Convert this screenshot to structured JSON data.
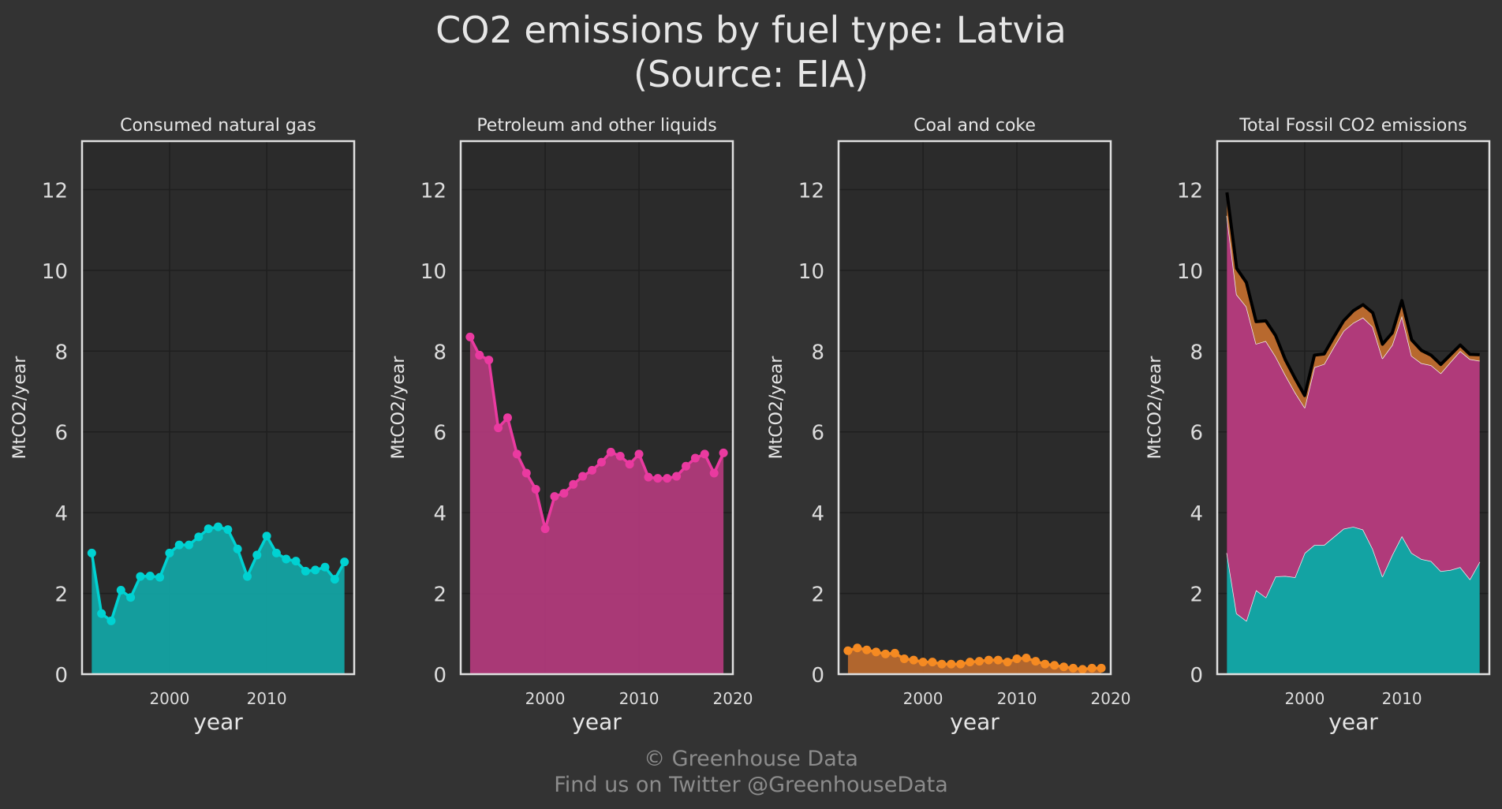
{
  "title_line1": "CO2 emissions by fuel type: Latvia",
  "title_line2": "(Source: EIA)",
  "footer_line1": "© Greenhouse Data",
  "footer_line2": "Find us on Twitter @GreenhouseData",
  "colors": {
    "background": "#333333",
    "panel": "#2b2b2b",
    "gas": "#00d2d2",
    "gas_fill": "#13a3a3",
    "petroleum": "#ea3aa0",
    "petroleum_fill": "#b03a7a",
    "coal": "#f58a22",
    "coal_fill": "#b8692e",
    "total_line": "#000000"
  },
  "chart_data": [
    {
      "type": "area",
      "title": "Consumed natural gas",
      "xlabel": "year",
      "ylabel": "MtCO2/year",
      "xlim": [
        1991,
        2019
      ],
      "ylim": [
        0,
        13.2
      ],
      "xticks": [
        2000,
        2010
      ],
      "yticks": [
        0,
        2,
        4,
        6,
        8,
        10,
        12
      ],
      "grid": true,
      "markers": true,
      "series": [
        {
          "x": [
            1992,
            1993,
            1994,
            1995,
            1996,
            1997,
            1998,
            1999,
            2000,
            2001,
            2002,
            2003,
            2004,
            2005,
            2006,
            2007,
            2008,
            2009,
            2010,
            2011,
            2012,
            2013,
            2014,
            2015,
            2016,
            2017,
            2018
          ],
          "values": [
            3.0,
            1.5,
            1.32,
            2.08,
            1.9,
            2.42,
            2.43,
            2.4,
            3.0,
            3.2,
            3.2,
            3.4,
            3.6,
            3.65,
            3.58,
            3.1,
            2.42,
            2.95,
            3.42,
            3.0,
            2.85,
            2.8,
            2.55,
            2.58,
            2.65,
            2.35,
            2.78
          ],
          "color": "#00d2d2",
          "fill": "#13a3a3"
        }
      ]
    },
    {
      "type": "area",
      "title": "Petroleum and other liquids",
      "xlabel": "year",
      "ylabel": "MtCO2/year",
      "xlim": [
        1991,
        2020
      ],
      "ylim": [
        0,
        13.2
      ],
      "xticks": [
        2000,
        2010,
        2020
      ],
      "yticks": [
        0,
        2,
        4,
        6,
        8,
        10,
        12
      ],
      "grid": true,
      "markers": true,
      "series": [
        {
          "x": [
            1992,
            1993,
            1994,
            1995,
            1996,
            1997,
            1998,
            1999,
            2000,
            2001,
            2002,
            2003,
            2004,
            2005,
            2006,
            2007,
            2008,
            2009,
            2010,
            2011,
            2012,
            2013,
            2014,
            2015,
            2016,
            2017,
            2018,
            2019
          ],
          "values": [
            8.35,
            7.9,
            7.78,
            6.1,
            6.35,
            5.45,
            4.98,
            4.58,
            3.6,
            4.4,
            4.48,
            4.7,
            4.9,
            5.05,
            5.25,
            5.5,
            5.4,
            5.2,
            5.45,
            4.88,
            4.85,
            4.85,
            4.9,
            5.15,
            5.35,
            5.45,
            4.98,
            5.48
          ],
          "color": "#ea3aa0",
          "fill": "#b03a7a"
        }
      ]
    },
    {
      "type": "area",
      "title": "Coal and coke",
      "xlabel": "year",
      "ylabel": "MtCO2/year",
      "xlim": [
        1991,
        2020
      ],
      "ylim": [
        0,
        13.2
      ],
      "xticks": [
        2000,
        2010,
        2020
      ],
      "yticks": [
        0,
        2,
        4,
        6,
        8,
        10,
        12
      ],
      "grid": true,
      "markers": true,
      "series": [
        {
          "x": [
            1992,
            1993,
            1994,
            1995,
            1996,
            1997,
            1998,
            1999,
            2000,
            2001,
            2002,
            2003,
            2004,
            2005,
            2006,
            2007,
            2008,
            2009,
            2010,
            2011,
            2012,
            2013,
            2014,
            2015,
            2016,
            2017,
            2018,
            2019
          ],
          "values": [
            0.58,
            0.65,
            0.6,
            0.55,
            0.5,
            0.52,
            0.38,
            0.35,
            0.3,
            0.3,
            0.25,
            0.25,
            0.25,
            0.3,
            0.32,
            0.35,
            0.35,
            0.3,
            0.38,
            0.4,
            0.32,
            0.25,
            0.22,
            0.18,
            0.15,
            0.12,
            0.15,
            0.15
          ],
          "color": "#f58a22",
          "fill": "#b8692e"
        }
      ]
    },
    {
      "type": "area",
      "stacked": true,
      "title": "Total Fossil CO2 emissions",
      "xlabel": "year",
      "ylabel": "MtCO2/year",
      "xlim": [
        1991,
        2019
      ],
      "ylim": [
        0,
        13.2
      ],
      "xticks": [
        2000,
        2010
      ],
      "yticks": [
        0,
        2,
        4,
        6,
        8,
        10,
        12
      ],
      "grid": true,
      "x": [
        1992,
        1993,
        1994,
        1995,
        1996,
        1997,
        1998,
        1999,
        2000,
        2001,
        2002,
        2003,
        2004,
        2005,
        2006,
        2007,
        2008,
        2009,
        2010,
        2011,
        2012,
        2013,
        2014,
        2015,
        2016,
        2017,
        2018
      ],
      "series": [
        {
          "values": [
            3.0,
            1.5,
            1.32,
            2.08,
            1.9,
            2.42,
            2.43,
            2.4,
            3.0,
            3.2,
            3.2,
            3.4,
            3.6,
            3.65,
            3.58,
            3.1,
            2.42,
            2.95,
            3.42,
            3.0,
            2.85,
            2.8,
            2.55,
            2.58,
            2.65,
            2.35,
            2.78
          ],
          "fill": "#13a3a3"
        },
        {
          "values": [
            8.35,
            7.9,
            7.78,
            6.1,
            6.35,
            5.45,
            4.98,
            4.58,
            3.6,
            4.4,
            4.48,
            4.7,
            4.9,
            5.05,
            5.25,
            5.5,
            5.4,
            5.2,
            5.45,
            4.88,
            4.85,
            4.85,
            4.9,
            5.15,
            5.35,
            5.45,
            4.98
          ],
          "fill": "#b03a7a"
        },
        {
          "values": [
            0.58,
            0.65,
            0.6,
            0.55,
            0.5,
            0.52,
            0.38,
            0.35,
            0.3,
            0.3,
            0.25,
            0.25,
            0.25,
            0.3,
            0.32,
            0.35,
            0.35,
            0.3,
            0.38,
            0.4,
            0.32,
            0.25,
            0.22,
            0.18,
            0.15,
            0.12,
            0.15
          ],
          "fill": "#b8692e"
        }
      ],
      "total_line_color": "#000000"
    }
  ]
}
